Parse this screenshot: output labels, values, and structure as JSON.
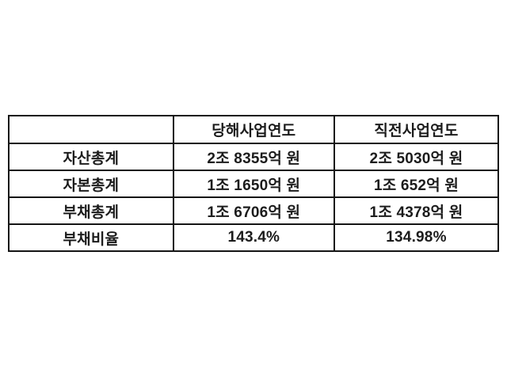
{
  "colors": {
    "background": "#ffffff",
    "border": "#151515",
    "text": "#1c1c1c"
  },
  "chart_data": {
    "type": "table",
    "title": "",
    "columns": [
      "",
      "당해사업연도",
      "직전사업연도"
    ],
    "rows": [
      [
        "자산총계",
        "2조 8355억 원",
        "2조 5030억 원"
      ],
      [
        "자본총계",
        "1조 1650억 원",
        "1조 652억 원"
      ],
      [
        "부채총계",
        "1조 6706억 원",
        "1조 4378억 원"
      ],
      [
        "부채비율",
        "143.4%",
        "134.98%"
      ]
    ]
  }
}
